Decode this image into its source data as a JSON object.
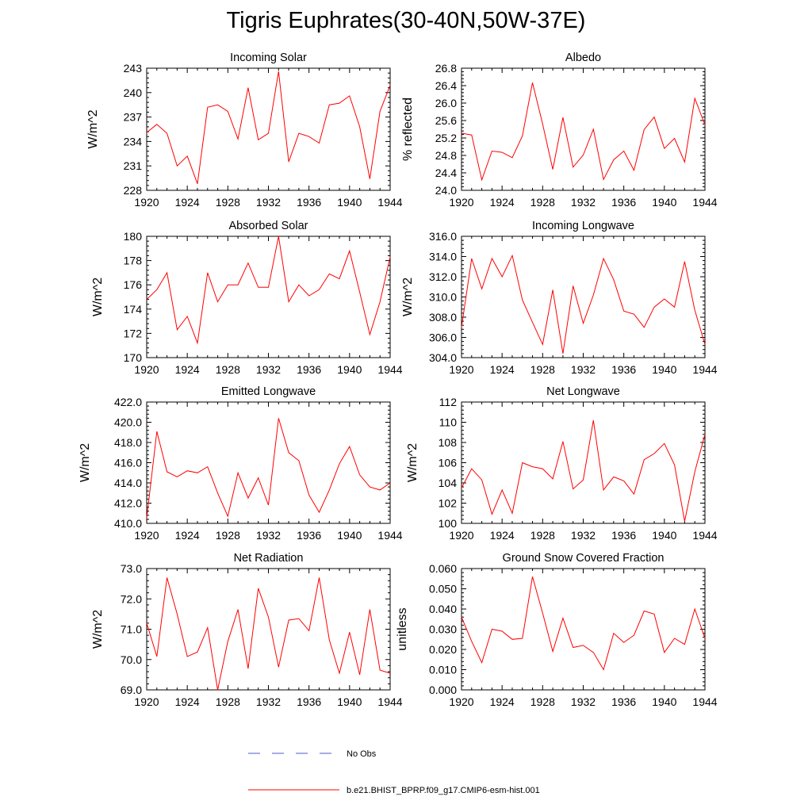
{
  "title": "Tigris Euphrates(30-40N,50W-37E)",
  "legend": {
    "items": [
      {
        "label": "No Obs",
        "color": "#4f5ad6",
        "style": "dashed"
      },
      {
        "label": "b.e21.BHIST_BPRP.f09_g17.CMIP6-esm-hist.001",
        "color": "#ff0000",
        "style": "solid"
      }
    ]
  },
  "chart_data": [
    {
      "type": "line",
      "title": "Incoming Solar",
      "ylabel": "W/m^2",
      "xlim": [
        1920,
        1944
      ],
      "ylim": [
        228,
        243
      ],
      "xticks": [
        "1920",
        "1924",
        "1928",
        "1932",
        "1936",
        "1940",
        "1944"
      ],
      "yticks": [
        "228",
        "231",
        "234",
        "237",
        "240",
        "243"
      ],
      "x": [
        1920,
        1921,
        1922,
        1923,
        1924,
        1925,
        1926,
        1927,
        1928,
        1929,
        1930,
        1931,
        1932,
        1933,
        1934,
        1935,
        1936,
        1937,
        1938,
        1939,
        1940,
        1941,
        1942,
        1943,
        1944
      ],
      "series": [
        {
          "values": [
            235.1,
            236.1,
            235.0,
            231.0,
            232.2,
            228.8,
            238.2,
            238.5,
            237.7,
            234.3,
            240.6,
            234.2,
            235.0,
            242.6,
            231.5,
            235.0,
            234.6,
            233.8,
            238.5,
            238.7,
            239.6,
            235.8,
            229.4,
            237.7,
            240.9
          ]
        }
      ]
    },
    {
      "type": "line",
      "title": "Albedo",
      "ylabel": "% reflected",
      "xlim": [
        1920,
        1944
      ],
      "ylim": [
        24.0,
        26.8
      ],
      "xticks": [
        "1920",
        "1924",
        "1928",
        "1932",
        "1936",
        "1940",
        "1944"
      ],
      "yticks": [
        "24.0",
        "24.4",
        "24.8",
        "25.2",
        "25.6",
        "26.0",
        "26.4",
        "26.8"
      ],
      "x": [
        1920,
        1921,
        1922,
        1923,
        1924,
        1925,
        1926,
        1927,
        1928,
        1929,
        1930,
        1931,
        1932,
        1933,
        1934,
        1935,
        1936,
        1937,
        1938,
        1939,
        1940,
        1941,
        1942,
        1943,
        1944
      ],
      "series": [
        {
          "values": [
            25.31,
            25.27,
            24.24,
            24.9,
            24.87,
            24.75,
            25.25,
            26.47,
            25.52,
            24.48,
            25.67,
            24.53,
            24.81,
            25.4,
            24.25,
            24.7,
            24.9,
            24.46,
            25.39,
            25.68,
            24.96,
            25.19,
            24.65,
            26.11,
            25.5
          ]
        }
      ]
    },
    {
      "type": "line",
      "title": "Absorbed Solar",
      "ylabel": "W/m^2",
      "xlim": [
        1920,
        1944
      ],
      "ylim": [
        170,
        180
      ],
      "xticks": [
        "1920",
        "1924",
        "1928",
        "1932",
        "1936",
        "1940",
        "1944"
      ],
      "yticks": [
        "170",
        "172",
        "174",
        "176",
        "178",
        "180"
      ],
      "x": [
        1920,
        1921,
        1922,
        1923,
        1924,
        1925,
        1926,
        1927,
        1928,
        1929,
        1930,
        1931,
        1932,
        1933,
        1934,
        1935,
        1936,
        1937,
        1938,
        1939,
        1940,
        1941,
        1942,
        1943,
        1944
      ],
      "series": [
        {
          "values": [
            174.8,
            175.6,
            177.0,
            172.3,
            173.4,
            171.2,
            177.0,
            174.6,
            176.0,
            176.0,
            177.8,
            175.8,
            175.8,
            180.0,
            174.6,
            176.0,
            175.1,
            175.6,
            176.9,
            176.5,
            178.8,
            175.4,
            171.9,
            174.6,
            178.3
          ]
        }
      ]
    },
    {
      "type": "line",
      "title": "Incoming Longwave",
      "ylabel": "W/m^2",
      "xlim": [
        1920,
        1944
      ],
      "ylim": [
        304.0,
        316.0
      ],
      "xticks": [
        "1920",
        "1924",
        "1928",
        "1932",
        "1936",
        "1940",
        "1944"
      ],
      "yticks": [
        "304.0",
        "306.0",
        "308.0",
        "310.0",
        "312.0",
        "314.0",
        "316.0"
      ],
      "x": [
        1920,
        1921,
        1922,
        1923,
        1924,
        1925,
        1926,
        1927,
        1928,
        1929,
        1930,
        1931,
        1932,
        1933,
        1934,
        1935,
        1936,
        1937,
        1938,
        1939,
        1940,
        1941,
        1942,
        1943,
        1944
      ],
      "series": [
        {
          "values": [
            307.0,
            313.8,
            310.8,
            313.8,
            312.0,
            314.1,
            309.7,
            307.5,
            305.3,
            310.7,
            304.4,
            311.1,
            307.4,
            310.2,
            313.8,
            311.7,
            308.6,
            308.3,
            307.0,
            309.0,
            309.8,
            309.0,
            313.5,
            308.7,
            305.3
          ]
        }
      ]
    },
    {
      "type": "line",
      "title": "Emitted Longwave",
      "ylabel": "W/m^2",
      "xlim": [
        1920,
        1944
      ],
      "ylim": [
        410.0,
        422.0
      ],
      "xticks": [
        "1920",
        "1924",
        "1928",
        "1932",
        "1936",
        "1940",
        "1944"
      ],
      "yticks": [
        "410.0",
        "412.0",
        "414.0",
        "416.0",
        "418.0",
        "420.0",
        "422.0"
      ],
      "x": [
        1920,
        1921,
        1922,
        1923,
        1924,
        1925,
        1926,
        1927,
        1928,
        1929,
        1930,
        1931,
        1932,
        1933,
        1934,
        1935,
        1936,
        1937,
        1938,
        1939,
        1940,
        1941,
        1942,
        1943,
        1944
      ],
      "series": [
        {
          "values": [
            410.5,
            419.1,
            415.1,
            414.6,
            415.2,
            415.0,
            415.6,
            413.0,
            410.7,
            415.0,
            412.5,
            414.5,
            411.8,
            420.4,
            417.0,
            416.2,
            412.8,
            411.1,
            413.3,
            415.9,
            417.6,
            414.8,
            413.6,
            413.3,
            414.0
          ]
        }
      ]
    },
    {
      "type": "line",
      "title": "Net Longwave",
      "ylabel": "W/m^2",
      "xlim": [
        1920,
        1944
      ],
      "ylim": [
        100,
        112
      ],
      "xticks": [
        "1920",
        "1924",
        "1928",
        "1932",
        "1936",
        "1940",
        "1944"
      ],
      "yticks": [
        "100",
        "102",
        "104",
        "106",
        "108",
        "110",
        "112"
      ],
      "x": [
        1920,
        1921,
        1922,
        1923,
        1924,
        1925,
        1926,
        1927,
        1928,
        1929,
        1930,
        1931,
        1932,
        1933,
        1934,
        1935,
        1936,
        1937,
        1938,
        1939,
        1940,
        1941,
        1942,
        1943,
        1944
      ],
      "series": [
        {
          "values": [
            103.5,
            105.4,
            104.3,
            100.9,
            103.3,
            101.0,
            106.0,
            105.6,
            105.4,
            104.4,
            108.1,
            103.4,
            104.3,
            110.2,
            103.3,
            104.6,
            104.2,
            102.9,
            106.3,
            106.9,
            107.9,
            105.8,
            100.2,
            105.1,
            108.8
          ]
        }
      ]
    },
    {
      "type": "line",
      "title": "Net Radiation",
      "ylabel": "W/m^2",
      "xlim": [
        1920,
        1944
      ],
      "ylim": [
        69.0,
        73.0
      ],
      "xticks": [
        "1920",
        "1924",
        "1928",
        "1932",
        "1936",
        "1940",
        "1944"
      ],
      "yticks": [
        "69.0",
        "70.0",
        "71.0",
        "72.0",
        "73.0"
      ],
      "x": [
        1920,
        1921,
        1922,
        1923,
        1924,
        1925,
        1926,
        1927,
        1928,
        1929,
        1930,
        1931,
        1932,
        1933,
        1934,
        1935,
        1936,
        1937,
        1938,
        1939,
        1940,
        1941,
        1942,
        1943,
        1944
      ],
      "series": [
        {
          "values": [
            71.2,
            70.1,
            72.7,
            71.5,
            70.1,
            70.25,
            71.05,
            69.0,
            70.6,
            71.65,
            69.7,
            72.35,
            71.4,
            69.75,
            71.3,
            71.35,
            70.95,
            72.7,
            70.65,
            69.55,
            70.9,
            69.5,
            71.65,
            69.65,
            69.55
          ]
        }
      ]
    },
    {
      "type": "line",
      "title": "Ground Snow Covered Fraction",
      "ylabel": "unitless",
      "xlim": [
        1920,
        1944
      ],
      "ylim": [
        0.0,
        0.06
      ],
      "xticks": [
        "1920",
        "1924",
        "1928",
        "1932",
        "1936",
        "1940",
        "1944"
      ],
      "yticks": [
        "0.000",
        "0.010",
        "0.020",
        "0.030",
        "0.040",
        "0.050",
        "0.060"
      ],
      "x": [
        1920,
        1921,
        1922,
        1923,
        1924,
        1925,
        1926,
        1927,
        1928,
        1929,
        1930,
        1931,
        1932,
        1933,
        1934,
        1935,
        1936,
        1937,
        1938,
        1939,
        1940,
        1941,
        1942,
        1943,
        1944
      ],
      "series": [
        {
          "values": [
            0.036,
            0.024,
            0.0135,
            0.03,
            0.029,
            0.025,
            0.0255,
            0.056,
            0.038,
            0.019,
            0.0355,
            0.021,
            0.022,
            0.0185,
            0.01,
            0.028,
            0.0235,
            0.027,
            0.039,
            0.0375,
            0.0185,
            0.0255,
            0.0225,
            0.04,
            0.0255
          ]
        }
      ]
    }
  ]
}
